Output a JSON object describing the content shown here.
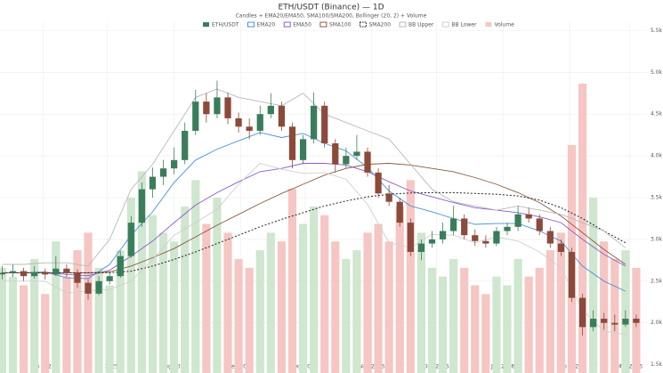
{
  "chart_data": {
    "type": "candlestick",
    "title": "ETH/USDT (Binance) — 1D",
    "subtitle": "Candles + EMA20/EMA50, SMA100/SMA200, Bollinger (20, 2) + Volume",
    "candle_name": "ETH/USDT",
    "volume_name": "Volume",
    "up_color": "#3a7d5a",
    "down_color": "#8b4a3a",
    "volume_up_color": "#cfe6cf",
    "volume_down_color": "#f5c6c3",
    "x": [
      0,
      5,
      10,
      15,
      20,
      25,
      30,
      35,
      40,
      45,
      50,
      55,
      60,
      65,
      70,
      75,
      80,
      85,
      90,
      95,
      100,
      105,
      110,
      115,
      120,
      125,
      130,
      135,
      140,
      145,
      150,
      155,
      160,
      165,
      170,
      175,
      180,
      185,
      190,
      195,
      200,
      205,
      210,
      215,
      220,
      225,
      230,
      235,
      240,
      245,
      250,
      255,
      260,
      265,
      270,
      275,
      280,
      285,
      290,
      295
    ],
    "open": [
      2580,
      2600,
      2620,
      2560,
      2610,
      2580,
      2650,
      2600,
      2480,
      2350,
      2500,
      2560,
      2800,
      3200,
      3600,
      3750,
      3850,
      3950,
      4300,
      4650,
      4500,
      4700,
      4450,
      4350,
      4300,
      4500,
      4600,
      4350,
      3950,
      4200,
      4600,
      4150,
      3900,
      4000,
      4050,
      3800,
      3550,
      3450,
      3200,
      2850,
      2950,
      3000,
      3100,
      3250,
      3050,
      2980,
      2950,
      3100,
      3150,
      3300,
      3250,
      3100,
      2950,
      2850,
      2300,
      1950,
      2050,
      2000,
      1980,
      2050
    ],
    "high": [
      2680,
      2700,
      2660,
      2680,
      2650,
      2800,
      2700,
      2640,
      2520,
      2560,
      2620,
      2860,
      3280,
      3680,
      3860,
      3950,
      4100,
      4400,
      4790,
      4750,
      4900,
      4760,
      4520,
      4450,
      4600,
      4750,
      4650,
      4400,
      4250,
      4760,
      4650,
      4200,
      4100,
      4250,
      4100,
      3850,
      3650,
      3500,
      3250,
      3000,
      3100,
      3200,
      3400,
      3300,
      3120,
      3050,
      3150,
      3200,
      3400,
      3380,
      3300,
      3150,
      3000,
      2900,
      2350,
      2150,
      2120,
      2100,
      2150,
      2100
    ],
    "low": [
      2520,
      2550,
      2500,
      2530,
      2520,
      2560,
      2550,
      2420,
      2280,
      2330,
      2460,
      2540,
      2780,
      3150,
      3500,
      3650,
      3780,
      3900,
      4250,
      4400,
      4450,
      4380,
      4280,
      4200,
      4250,
      4450,
      4300,
      3850,
      3900,
      4150,
      4100,
      3800,
      3850,
      3950,
      3750,
      3500,
      3400,
      3150,
      2800,
      2750,
      2900,
      2950,
      3050,
      3000,
      2920,
      2900,
      2920,
      3050,
      3100,
      3200,
      3050,
      2900,
      2800,
      2250,
      1850,
      1900,
      1920,
      1900,
      1950,
      1950
    ],
    "close": [
      2600,
      2620,
      2560,
      2610,
      2580,
      2650,
      2600,
      2480,
      2350,
      2500,
      2560,
      2800,
      3200,
      3600,
      3750,
      3850,
      3950,
      4300,
      4650,
      4500,
      4700,
      4450,
      4350,
      4300,
      4500,
      4600,
      4350,
      3950,
      4200,
      4600,
      4150,
      3900,
      4000,
      4050,
      3800,
      3550,
      3450,
      3200,
      2850,
      2950,
      3000,
      3100,
      3250,
      3050,
      2980,
      2950,
      3100,
      3150,
      3300,
      3250,
      3100,
      2950,
      2850,
      2300,
      1950,
      2050,
      2000,
      1980,
      2050,
      2000
    ],
    "volume": [
      120,
      110,
      100,
      130,
      90,
      150,
      110,
      140,
      160,
      120,
      100,
      140,
      200,
      230,
      180,
      160,
      150,
      190,
      220,
      170,
      200,
      160,
      130,
      120,
      140,
      160,
      150,
      210,
      170,
      190,
      180,
      150,
      130,
      140,
      160,
      170,
      150,
      190,
      220,
      160,
      120,
      110,
      130,
      120,
      100,
      90,
      110,
      100,
      130,
      110,
      120,
      140,
      160,
      260,
      330,
      200,
      150,
      130,
      140,
      120
    ],
    "vlim": [
      0,
      400
    ],
    "overlays": [
      {
        "name": "EMA20",
        "color": "#4a90d9",
        "dash": false,
        "x": [
          0,
          10,
          20,
          30,
          40,
          50,
          60,
          70,
          80,
          90,
          100,
          110,
          120,
          130,
          140,
          150,
          160,
          170,
          180,
          190,
          200,
          210,
          220,
          230,
          240,
          250,
          260,
          270,
          280,
          290
        ],
        "values": [
          2600,
          2600,
          2610,
          2540,
          2530,
          2700,
          3050,
          3330,
          3680,
          3950,
          4080,
          4180,
          4280,
          4220,
          4270,
          4150,
          4060,
          3860,
          3580,
          3400,
          3330,
          3250,
          3180,
          3190,
          3190,
          3100,
          2980,
          2680,
          2500,
          2380
        ]
      },
      {
        "name": "EMA50",
        "color": "#8a5cc9",
        "dash": false,
        "x": [
          0,
          10,
          20,
          30,
          40,
          50,
          60,
          70,
          80,
          90,
          100,
          110,
          120,
          130,
          140,
          150,
          160,
          170,
          180,
          190,
          200,
          210,
          220,
          230,
          240,
          250,
          260,
          270,
          280,
          290
        ],
        "values": [
          2600,
          2600,
          2600,
          2580,
          2565,
          2630,
          2800,
          2980,
          3200,
          3410,
          3560,
          3690,
          3810,
          3850,
          3910,
          3910,
          3890,
          3810,
          3690,
          3580,
          3510,
          3440,
          3380,
          3350,
          3320,
          3270,
          3200,
          3000,
          2820,
          2680
        ]
      },
      {
        "name": "SMA100",
        "color": "#8b5a3c",
        "dash": false,
        "x": [
          0,
          10,
          20,
          30,
          40,
          50,
          60,
          70,
          80,
          90,
          100,
          110,
          120,
          130,
          140,
          150,
          160,
          170,
          180,
          190,
          200,
          210,
          220,
          230,
          240,
          250,
          260,
          270,
          280,
          290
        ],
        "values": [
          2600,
          2600,
          2600,
          2600,
          2600,
          2610,
          2680,
          2780,
          2890,
          3030,
          3170,
          3300,
          3430,
          3550,
          3660,
          3770,
          3850,
          3900,
          3910,
          3890,
          3850,
          3810,
          3740,
          3660,
          3560,
          3440,
          3280,
          3080,
          2880,
          2700
        ]
      },
      {
        "name": "SMA200",
        "color": "#222222",
        "dash": true,
        "x": [
          0,
          10,
          20,
          30,
          40,
          50,
          60,
          70,
          80,
          90,
          100,
          110,
          120,
          130,
          140,
          150,
          160,
          170,
          180,
          190,
          200,
          210,
          220,
          230,
          240,
          250,
          260,
          270,
          280,
          290
        ],
        "values": [
          2600,
          2600,
          2600,
          2600,
          2600,
          2600,
          2620,
          2680,
          2760,
          2850,
          2950,
          3050,
          3150,
          3240,
          3320,
          3400,
          3460,
          3510,
          3540,
          3555,
          3560,
          3560,
          3550,
          3540,
          3520,
          3470,
          3380,
          3250,
          3100,
          2960
        ]
      },
      {
        "name": "BB Upper",
        "color": "#b8b8b8",
        "dash": false,
        "x": [
          0,
          10,
          20,
          30,
          40,
          50,
          60,
          70,
          80,
          90,
          100,
          110,
          120,
          130,
          140,
          150,
          160,
          170,
          180,
          190,
          200,
          210,
          220,
          230,
          240,
          250,
          260,
          270,
          280,
          290
        ],
        "values": [
          2700,
          2700,
          2720,
          2720,
          2680,
          3000,
          3600,
          3900,
          4300,
          4700,
          4800,
          4700,
          4650,
          4600,
          4750,
          4500,
          4400,
          4300,
          4200,
          3900,
          3600,
          3450,
          3400,
          3350,
          3400,
          3350,
          3300,
          3200,
          3100,
          2900
        ]
      },
      {
        "name": "BB Lower",
        "color": "#cfcfcf",
        "dash": false,
        "x": [
          0,
          10,
          20,
          30,
          40,
          50,
          60,
          70,
          80,
          90,
          100,
          110,
          120,
          130,
          140,
          150,
          160,
          170,
          180,
          190,
          200,
          210,
          220,
          230,
          240,
          250,
          260,
          270,
          280,
          290
        ],
        "values": [
          2500,
          2500,
          2500,
          2360,
          2380,
          2400,
          2500,
          2760,
          3050,
          3200,
          3360,
          3660,
          3910,
          3840,
          3790,
          3800,
          3720,
          3420,
          2960,
          2900,
          3060,
          3050,
          2960,
          3030,
          2980,
          2850,
          2660,
          2160,
          1900,
          1860
        ]
      }
    ],
    "xlim": [
      -1,
      300
    ],
    "xticks": [
      {
        "value": 19,
        "label": "Jun 2025"
      },
      {
        "value": 49,
        "label": "Jul 2025"
      },
      {
        "value": 80,
        "label": "Aug 2025"
      },
      {
        "value": 111,
        "label": "Sep 2025"
      },
      {
        "value": 141,
        "label": "Oct 2025"
      },
      {
        "value": 172,
        "label": "Nov 2025"
      },
      {
        "value": 202,
        "label": "Dec 2025"
      },
      {
        "value": 233,
        "label": "Jan 2026"
      },
      {
        "value": 264,
        "label": "Feb 2026"
      },
      {
        "value": 292,
        "label": "Mar 2026"
      }
    ],
    "ylim": [
      1400,
      5600
    ],
    "yticks": [
      {
        "value": 1500,
        "label": "1.5k"
      },
      {
        "value": 2000,
        "label": "2.0k"
      },
      {
        "value": 2500,
        "label": "2.5k"
      },
      {
        "value": 3000,
        "label": "3.0k"
      },
      {
        "value": 3500,
        "label": "3.5k"
      },
      {
        "value": 4000,
        "label": "4.0k"
      },
      {
        "value": 4500,
        "label": "4.5k"
      },
      {
        "value": 5000,
        "label": "5.0k"
      },
      {
        "value": 5500,
        "label": "5.5k"
      }
    ],
    "grid": true
  }
}
